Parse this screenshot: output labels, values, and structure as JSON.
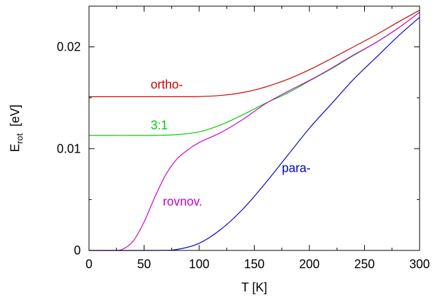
{
  "chart_data": {
    "type": "line",
    "xlabel": "T  [K]",
    "ylabel": {
      "main": "E",
      "sub": "rot",
      "unit": "  [eV]"
    },
    "xlim": [
      0,
      300
    ],
    "ylim": [
      0,
      0.024
    ],
    "xticks": [
      0,
      50,
      100,
      150,
      200,
      250,
      300
    ],
    "xtick_labels": [
      "0",
      "50",
      "100",
      "150",
      "200",
      "250",
      "300"
    ],
    "yticks": [
      0,
      0.01,
      0.02
    ],
    "ytick_labels": [
      "0",
      "0.01",
      "0.02"
    ],
    "grid": false,
    "series": [
      {
        "name": "ortho-",
        "color": "#cc0000",
        "x": [
          0,
          20,
          40,
          60,
          80,
          100,
          120,
          140,
          160,
          180,
          200,
          220,
          240,
          260,
          280,
          300
        ],
        "y": [
          0.0151,
          0.0151,
          0.0151,
          0.0151,
          0.0151,
          0.01512,
          0.01523,
          0.01552,
          0.01605,
          0.0168,
          0.01775,
          0.01885,
          0.02,
          0.02115,
          0.0224,
          0.0236
        ]
      },
      {
        "name": "3:1",
        "color": "#00cc00",
        "x": [
          0,
          20,
          40,
          60,
          80,
          100,
          120,
          140,
          160,
          180,
          200,
          220,
          240,
          260,
          280,
          300
        ],
        "y": [
          0.0113,
          0.0113,
          0.0113,
          0.01131,
          0.01138,
          0.01165,
          0.01235,
          0.01335,
          0.01445,
          0.01545,
          0.01665,
          0.01785,
          0.01915,
          0.0204,
          0.0218,
          0.0234
        ]
      },
      {
        "name": "para-",
        "color": "#0000cc",
        "x": [
          0,
          60,
          80,
          100,
          120,
          140,
          160,
          180,
          200,
          220,
          240,
          260,
          280,
          300
        ],
        "y": [
          0,
          0,
          0.0001,
          0.0007,
          0.0021,
          0.0041,
          0.0066,
          0.0093,
          0.012,
          0.0144,
          0.0168,
          0.0189,
          0.021,
          0.0229
        ]
      },
      {
        "name": "rovnov.",
        "color": "#cc00cc",
        "x": [
          0,
          20,
          30,
          40,
          50,
          60,
          70,
          80,
          90,
          100,
          120,
          140,
          160,
          180,
          200,
          220,
          240,
          260,
          280,
          300
        ],
        "y": [
          0,
          0,
          0.0001,
          0.0009,
          0.0028,
          0.0053,
          0.0075,
          0.009,
          0.0099,
          0.0106,
          0.0116,
          0.0129,
          0.0144,
          0.0156,
          0.0167,
          0.0179,
          0.0192,
          0.0204,
          0.0218,
          0.0234
        ]
      }
    ]
  }
}
